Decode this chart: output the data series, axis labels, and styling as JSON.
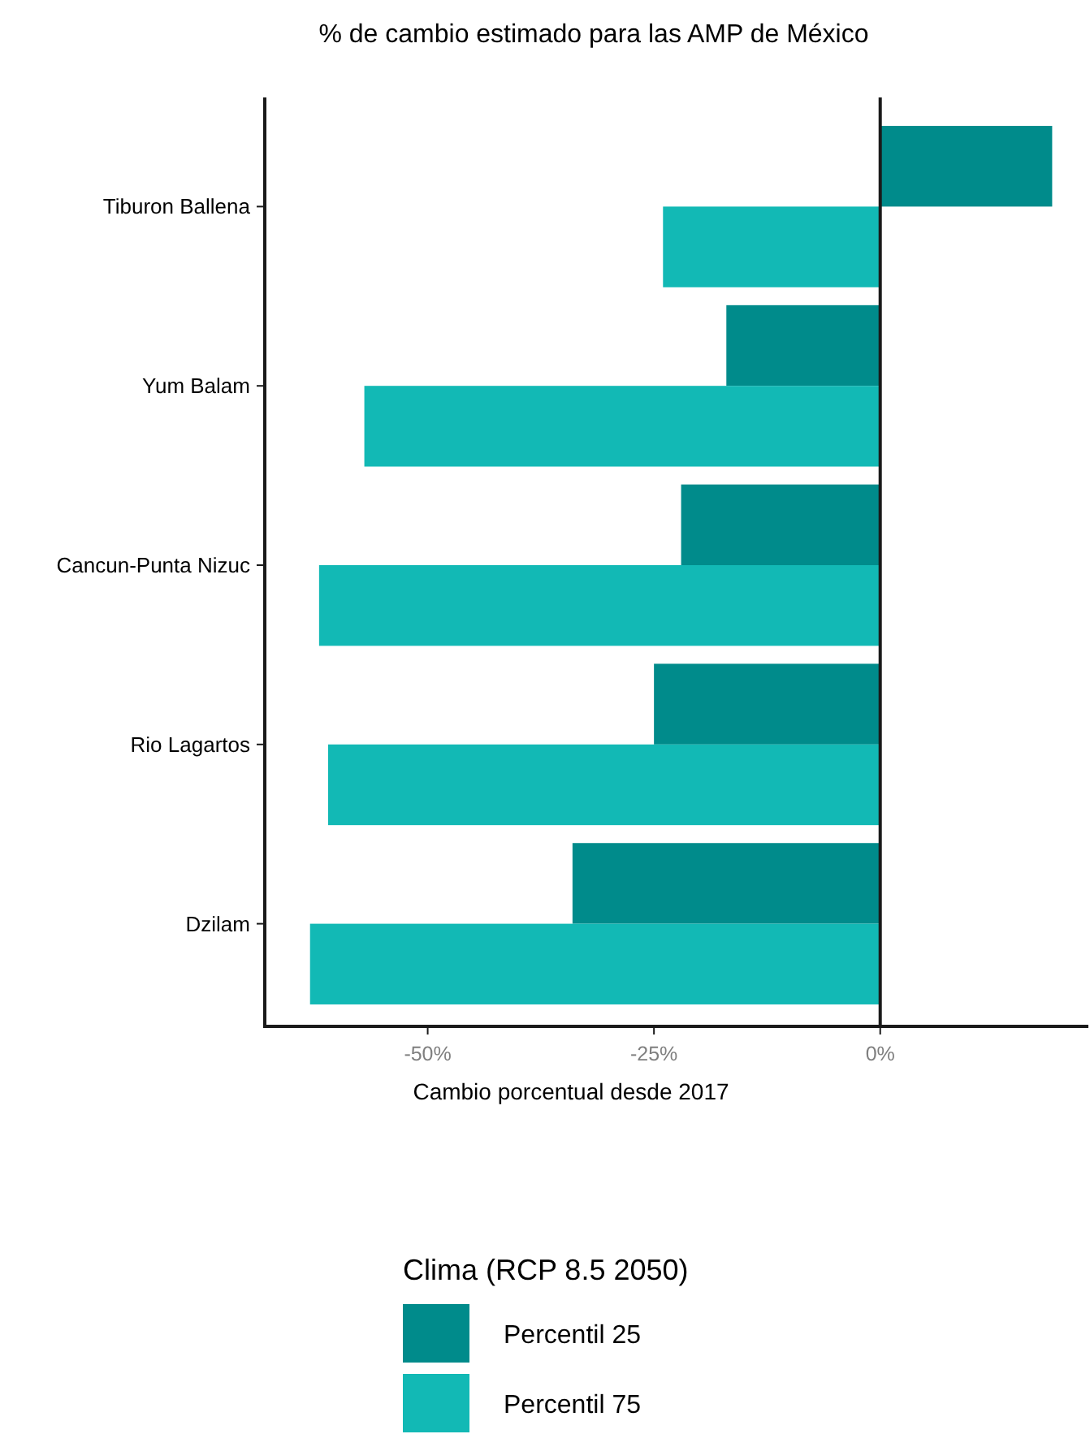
{
  "chart_data": {
    "type": "bar",
    "orientation": "horizontal",
    "title": "% de cambio estimado para las AMP de México",
    "xlabel": "Cambio porcentual desde 2017",
    "legend_title": "Clima (RCP 8.5 2050)",
    "legend": "bottom",
    "grid": false,
    "categories": [
      "Tiburon Ballena",
      "Yum Balam",
      "Cancun-Punta Nizuc",
      "Rio Lagartos",
      "Dzilam"
    ],
    "series": [
      {
        "name": "Percentil 25",
        "color": "#008b8b",
        "values": [
          19,
          -17,
          -22,
          -25,
          -34
        ]
      },
      {
        "name": "Percentil 75",
        "color": "#12b9b5",
        "values": [
          -24,
          -57,
          -62,
          -61,
          -63
        ]
      }
    ],
    "xlim": [
      -68,
      23
    ],
    "xticks": [
      {
        "value": -50,
        "label": "-50%"
      },
      {
        "value": -25,
        "label": "-25%"
      },
      {
        "value": 0,
        "label": "0%"
      }
    ],
    "ref_lines": [
      {
        "axis": "x",
        "value": 0,
        "color": "#1a1a1a"
      }
    ]
  }
}
